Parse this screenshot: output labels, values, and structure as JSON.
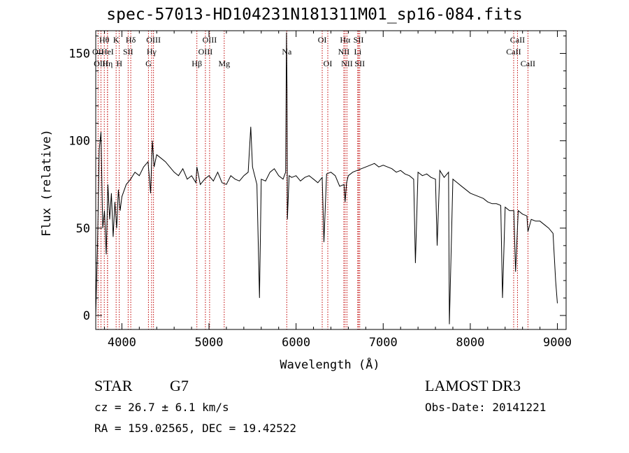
{
  "chart_data": {
    "type": "line",
    "title": "spec-57013-HD104231N181311M01_sp16-084.fits",
    "xlabel": "Wavelength (Å)",
    "ylabel": "Flux (relative)",
    "xlim": [
      3700,
      9100
    ],
    "ylim": [
      -8,
      163
    ],
    "xticks": [
      4000,
      5000,
      6000,
      7000,
      8000,
      9000
    ],
    "yticks": [
      0,
      50,
      100,
      150
    ],
    "series": [
      {
        "name": "flux",
        "x": [
          3700,
          3720,
          3740,
          3760,
          3780,
          3800,
          3820,
          3840,
          3860,
          3880,
          3900,
          3920,
          3940,
          3960,
          3980,
          4000,
          4050,
          4100,
          4150,
          4200,
          4250,
          4300,
          4330,
          4350,
          4370,
          4400,
          4450,
          4500,
          4550,
          4600,
          4650,
          4700,
          4750,
          4800,
          4850,
          4861,
          4900,
          4950,
          5000,
          5050,
          5100,
          5150,
          5200,
          5250,
          5300,
          5350,
          5400,
          5450,
          5480,
          5500,
          5550,
          5580,
          5600,
          5650,
          5700,
          5750,
          5800,
          5850,
          5880,
          5890,
          5896,
          5900,
          5920,
          5950,
          6000,
          6050,
          6100,
          6150,
          6200,
          6250,
          6300,
          6320,
          6350,
          6400,
          6450,
          6500,
          6550,
          6563,
          6580,
          6600,
          6650,
          6700,
          6750,
          6800,
          6850,
          6900,
          6950,
          7000,
          7050,
          7100,
          7150,
          7200,
          7250,
          7300,
          7350,
          7370,
          7400,
          7450,
          7500,
          7550,
          7600,
          7620,
          7650,
          7700,
          7750,
          7760,
          7800,
          7850,
          7900,
          7950,
          8000,
          8050,
          8100,
          8150,
          8200,
          8250,
          8300,
          8350,
          8370,
          8400,
          8450,
          8500,
          8520,
          8550,
          8600,
          8650,
          8662,
          8700,
          8750,
          8800,
          8850,
          8900,
          8950,
          8980,
          9000
        ],
        "y": [
          0,
          40,
          95,
          105,
          50,
          60,
          35,
          75,
          55,
          70,
          45,
          65,
          50,
          72,
          60,
          68,
          75,
          78,
          82,
          80,
          85,
          88,
          70,
          100,
          85,
          92,
          90,
          88,
          85,
          82,
          80,
          84,
          78,
          80,
          76,
          85,
          75,
          78,
          80,
          77,
          82,
          76,
          75,
          80,
          78,
          77,
          80,
          82,
          108,
          85,
          75,
          10,
          78,
          77,
          82,
          84,
          80,
          78,
          82,
          162,
          130,
          55,
          80,
          79,
          80,
          77,
          79,
          80,
          78,
          76,
          79,
          42,
          81,
          82,
          80,
          74,
          75,
          65,
          76,
          80,
          82,
          83,
          84,
          85,
          86,
          87,
          85,
          86,
          85,
          84,
          82,
          83,
          81,
          80,
          78,
          30,
          82,
          80,
          81,
          79,
          78,
          40,
          83,
          79,
          82,
          -5,
          78,
          76,
          74,
          72,
          70,
          69,
          68,
          67,
          65,
          64,
          64,
          63,
          10,
          62,
          60,
          60,
          25,
          60,
          58,
          57,
          48,
          55,
          54,
          54,
          52,
          50,
          47,
          20,
          7
        ]
      }
    ],
    "lines": [
      {
        "label": "Hθ",
        "x": 3798,
        "row": 0
      },
      {
        "label": "OII",
        "x": 3727,
        "row": 1
      },
      {
        "label": "OIII",
        "x": 3760,
        "row": 2
      },
      {
        "label": "HeI",
        "x": 3835,
        "row": 1
      },
      {
        "label": "Hη",
        "x": 3835,
        "row": 2
      },
      {
        "label": "K",
        "x": 3934,
        "row": 0
      },
      {
        "label": "SII",
        "x": 4072,
        "row": 1
      },
      {
        "label": "H",
        "x": 3970,
        "row": 2
      },
      {
        "label": "Hδ",
        "x": 4102,
        "row": 0
      },
      {
        "label": "OIII",
        "x": 4363,
        "row": 0
      },
      {
        "label": "Hγ",
        "x": 4341,
        "row": 1
      },
      {
        "label": "G",
        "x": 4305,
        "row": 2
      },
      {
        "label": "OIII",
        "x": 5007,
        "row": 0
      },
      {
        "label": "OIII",
        "x": 4959,
        "row": 1
      },
      {
        "label": "Hβ",
        "x": 4861,
        "row": 2
      },
      {
        "label": "Mg",
        "x": 5175,
        "row": 2
      },
      {
        "label": "Na",
        "x": 5893,
        "row": 1
      },
      {
        "label": "OI",
        "x": 6300,
        "row": 0
      },
      {
        "label": "OI",
        "x": 6364,
        "row": 2
      },
      {
        "label": "Hα",
        "x": 6563,
        "row": 0
      },
      {
        "label": "NII",
        "x": 6548,
        "row": 1
      },
      {
        "label": "NII",
        "x": 6584,
        "row": 2
      },
      {
        "label": "SII",
        "x": 6717,
        "row": 0
      },
      {
        "label": "Li",
        "x": 6708,
        "row": 1
      },
      {
        "label": "SII",
        "x": 6731,
        "row": 2
      },
      {
        "label": "CaII",
        "x": 8542,
        "row": 0
      },
      {
        "label": "CaII",
        "x": 8498,
        "row": 1
      },
      {
        "label": "CaII",
        "x": 8662,
        "row": 2
      }
    ]
  },
  "info": {
    "object_class": "STAR",
    "subclass": "G7",
    "survey": "LAMOST DR3",
    "cz": "cz = 26.7 ± 6.1 km/s",
    "obs_date": "Obs-Date: 20141221",
    "coords": "RA = 159.02565, DEC =  19.42522"
  }
}
